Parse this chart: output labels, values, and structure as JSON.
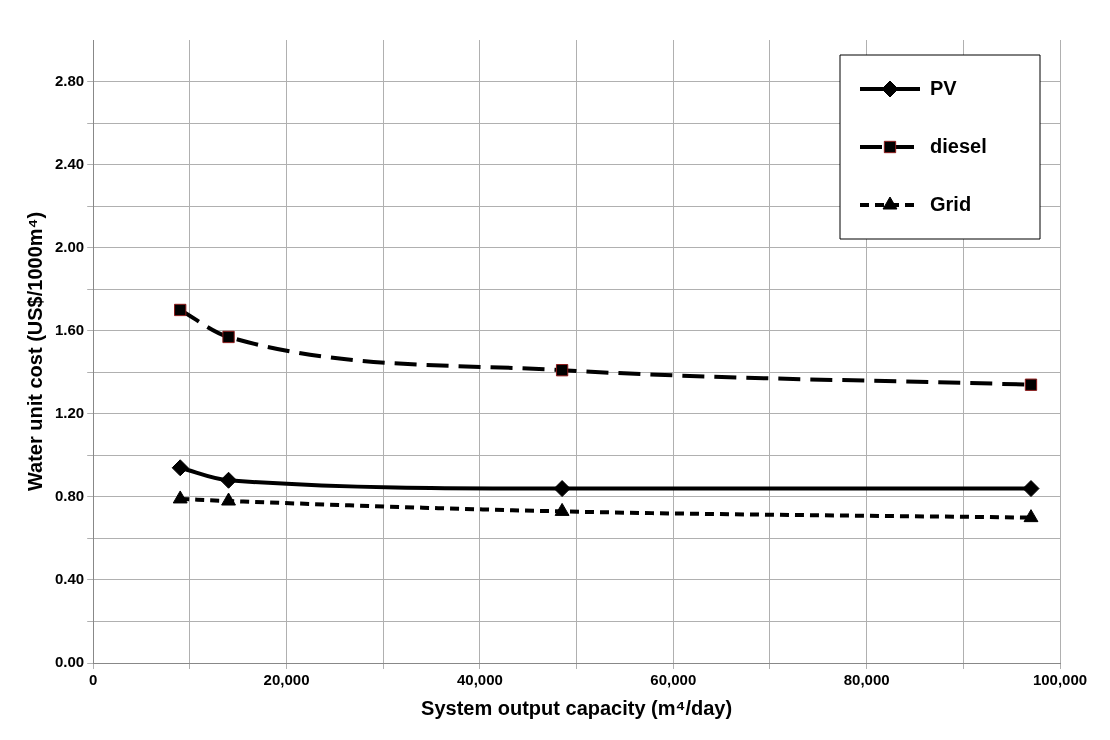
{
  "chart_data": {
    "type": "line",
    "xlabel": "System output capacity (m⁴/day)",
    "ylabel": "Water unit cost (US$/1000m⁴)",
    "x": [
      9000,
      14000,
      48500,
      97000
    ],
    "series": [
      {
        "name": "PV",
        "color": "#000000",
        "values": [
          0.94,
          0.88,
          0.84,
          0.84
        ],
        "marker": "diamond",
        "line_style": "solid"
      },
      {
        "name": "diesel",
        "color": "#000000",
        "values": [
          1.7,
          1.57,
          1.41,
          1.34
        ],
        "marker": "square",
        "line_style": "dashed"
      },
      {
        "name": "Grid",
        "color": "#000000",
        "values": [
          0.79,
          0.78,
          0.73,
          0.7
        ],
        "marker": "triangle",
        "line_style": "dotted"
      }
    ],
    "xlim": [
      0,
      100000
    ],
    "xticks": [
      {
        "value": 0,
        "label": "0"
      },
      {
        "value": 10000,
        "label": null
      },
      {
        "value": 20000,
        "label": "20,000"
      },
      {
        "value": 30000,
        "label": null
      },
      {
        "value": 40000,
        "label": "40,000"
      },
      {
        "value": 50000,
        "label": null
      },
      {
        "value": 60000,
        "label": "60,000"
      },
      {
        "value": 70000,
        "label": null
      },
      {
        "value": 80000,
        "label": "80,000"
      },
      {
        "value": 90000,
        "label": null
      },
      {
        "value": 100000,
        "label": "100,000"
      }
    ],
    "ylim": [
      0,
      3
    ],
    "yticks": [
      {
        "value": 0,
        "label": "0.00"
      },
      {
        "value": 0.2,
        "label": null
      },
      {
        "value": 0.4,
        "label": "0.40"
      },
      {
        "value": 0.6,
        "label": null
      },
      {
        "value": 0.8,
        "label": "0.80"
      },
      {
        "value": 1.0,
        "label": null
      },
      {
        "value": 1.2,
        "label": "1.20"
      },
      {
        "value": 1.4,
        "label": null
      },
      {
        "value": 1.6,
        "label": "1.60"
      },
      {
        "value": 1.8,
        "label": null
      },
      {
        "value": 2.0,
        "label": "2.00"
      },
      {
        "value": 2.2,
        "label": null
      },
      {
        "value": 2.4,
        "label": "2.40"
      },
      {
        "value": 2.6,
        "label": null
      },
      {
        "value": 2.8,
        "label": "2.80"
      }
    ],
    "grid": true,
    "legend": "top right"
  }
}
